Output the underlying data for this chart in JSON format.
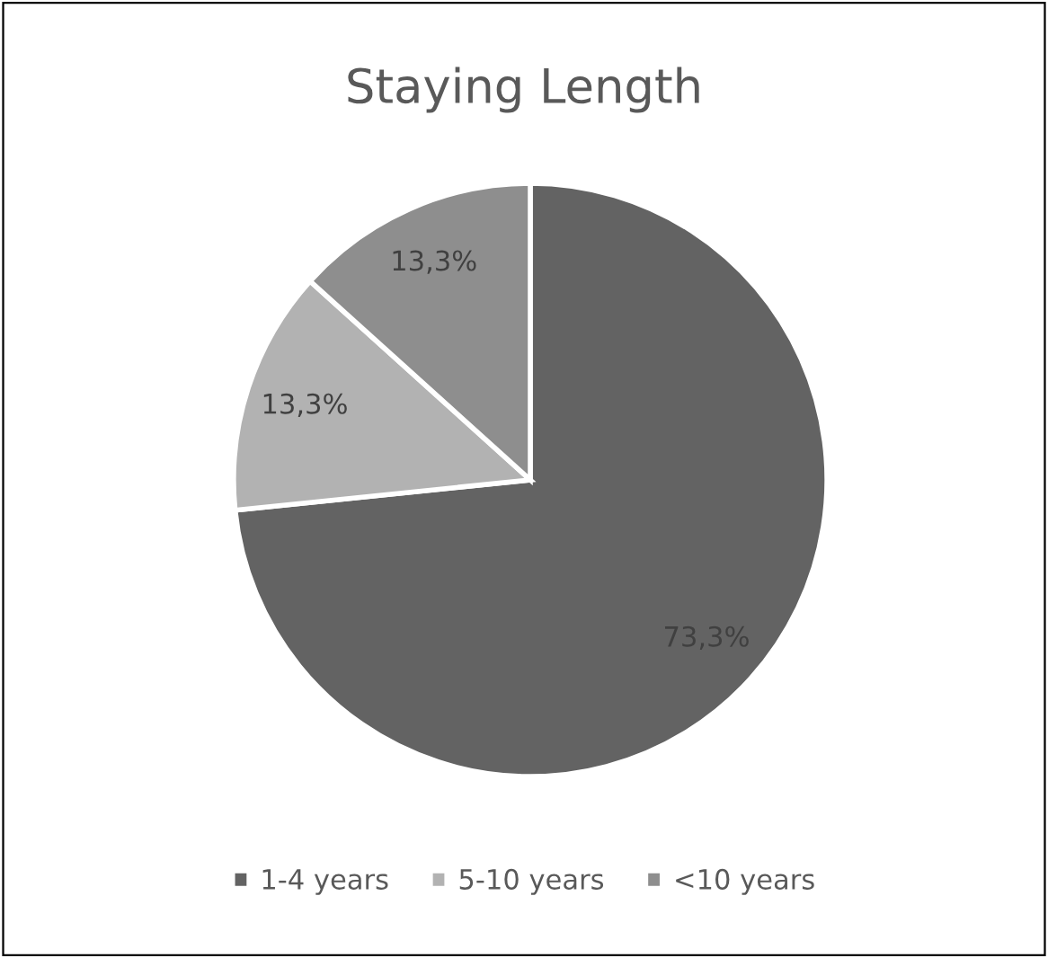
{
  "chart_data": {
    "type": "pie",
    "title": "Staying Length",
    "categories": [
      "1-4 years",
      "5-10 years",
      "<10 years"
    ],
    "values": [
      73.3,
      13.3,
      13.3
    ],
    "colors": [
      "#636363",
      "#b2b2b2",
      "#8e8e8e"
    ],
    "value_labels": [
      "73,3%",
      "13,3%",
      "13,3%"
    ],
    "legend": "bottom"
  }
}
